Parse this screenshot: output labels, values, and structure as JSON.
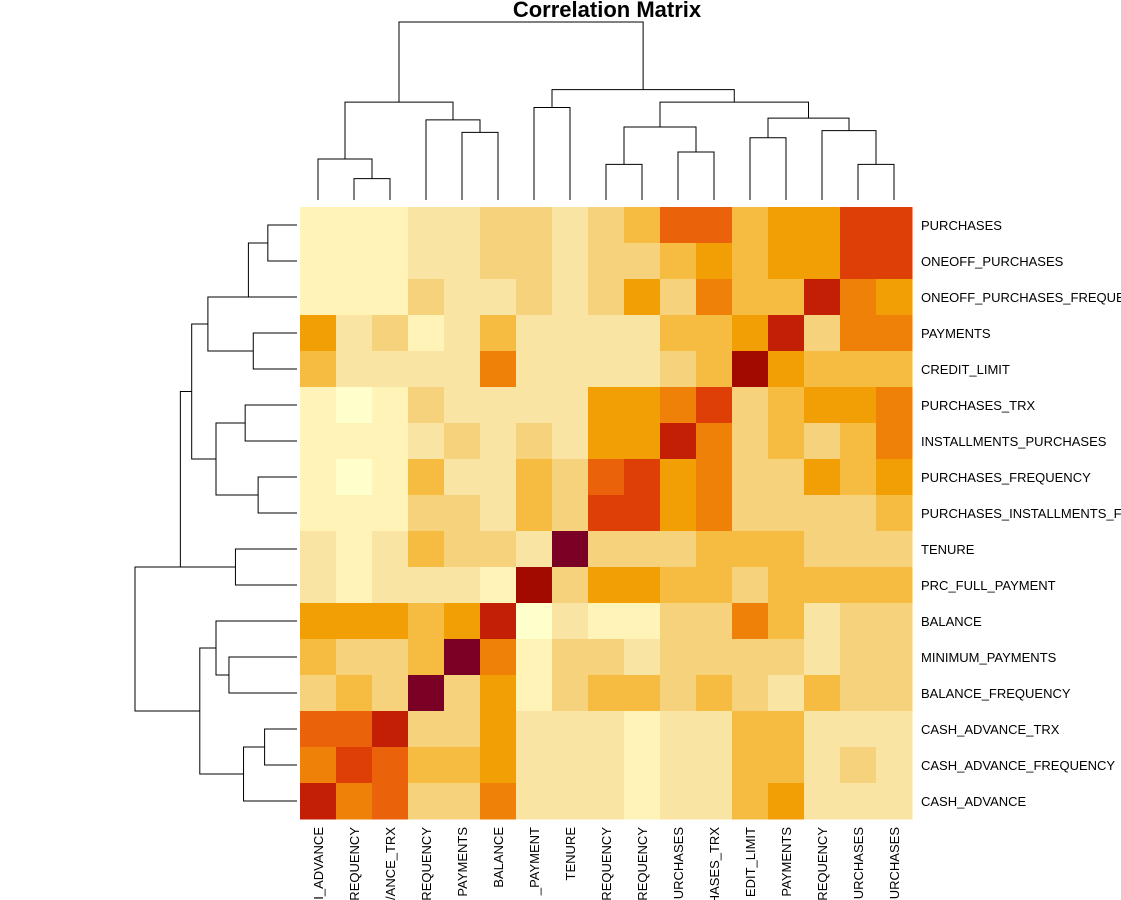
{
  "chart_data": {
    "type": "heatmap",
    "title": "Correlation Matrix",
    "row_labels": [
      "PURCHASES",
      "ONEOFF_PURCHASES",
      "ONEOFF_PURCHASES_FREQUE",
      "PAYMENTS",
      "CREDIT_LIMIT",
      "PURCHASES_TRX",
      "INSTALLMENTS_PURCHASES",
      "PURCHASES_FREQUENCY",
      "PURCHASES_INSTALLMENTS_F",
      "TENURE",
      "PRC_FULL_PAYMENT",
      "BALANCE",
      "MINIMUM_PAYMENTS",
      "BALANCE_FREQUENCY",
      "CASH_ADVANCE_TRX",
      "CASH_ADVANCE_FREQUENCY",
      "CASH_ADVANCE"
    ],
    "col_labels": [
      "I_ADVANCE",
      "REQUENCY",
      "/ANCE_TRX",
      "REQUENCY",
      "PAYMENTS",
      "BALANCE",
      "_PAYMENT",
      "TENURE",
      "REQUENCY",
      "REQUENCY",
      "URCHASES",
      "HASES_TRX",
      "EDIT_LIMIT",
      "PAYMENTS",
      "REQUENCY",
      "URCHASES",
      "URCHASES"
    ],
    "color_scale": {
      "name": "heat",
      "stops": [
        "#FFFFCC",
        "#FFF3B8",
        "#F9E4A3",
        "#F6D27D",
        "#F6BB41",
        "#F29F05",
        "#F08108",
        "#EA620A",
        "#DE3F06",
        "#C21F05",
        "#A20A00",
        "#7A0026"
      ]
    },
    "levels": [
      [
        1,
        1,
        1,
        2,
        2,
        3,
        3,
        2,
        3,
        4,
        7,
        7,
        4,
        5,
        5,
        8,
        8
      ],
      [
        1,
        1,
        1,
        2,
        2,
        3,
        3,
        2,
        3,
        3,
        4,
        5,
        4,
        5,
        5,
        8,
        8
      ],
      [
        1,
        1,
        1,
        3,
        2,
        2,
        3,
        2,
        3,
        5,
        3,
        6,
        4,
        4,
        9,
        6,
        5
      ],
      [
        5,
        2,
        3,
        1,
        2,
        4,
        2,
        2,
        2,
        2,
        4,
        4,
        5,
        9,
        3,
        6,
        6
      ],
      [
        4,
        2,
        2,
        2,
        2,
        6,
        2,
        2,
        2,
        2,
        3,
        4,
        10,
        5,
        4,
        4,
        4
      ],
      [
        1,
        0,
        1,
        3,
        2,
        2,
        2,
        2,
        5,
        5,
        6,
        8,
        3,
        4,
        5,
        5,
        6
      ],
      [
        1,
        1,
        1,
        2,
        3,
        2,
        3,
        2,
        5,
        5,
        9,
        6,
        3,
        4,
        3,
        4,
        6
      ],
      [
        1,
        0,
        1,
        4,
        2,
        2,
        4,
        3,
        7,
        8,
        5,
        6,
        3,
        3,
        5,
        4,
        5
      ],
      [
        1,
        1,
        1,
        3,
        3,
        2,
        4,
        3,
        8,
        8,
        5,
        6,
        3,
        3,
        3,
        3,
        4
      ],
      [
        2,
        1,
        2,
        4,
        3,
        3,
        2,
        11,
        3,
        3,
        3,
        4,
        4,
        4,
        3,
        3,
        3
      ],
      [
        2,
        1,
        2,
        2,
        2,
        1,
        10,
        3,
        5,
        5,
        4,
        4,
        3,
        4,
        4,
        4,
        4
      ],
      [
        5,
        5,
        5,
        4,
        5,
        9,
        0,
        2,
        1,
        1,
        3,
        3,
        6,
        4,
        2,
        3,
        3
      ],
      [
        4,
        3,
        3,
        4,
        11,
        6,
        1,
        3,
        3,
        2,
        3,
        3,
        3,
        3,
        2,
        3,
        3
      ],
      [
        3,
        4,
        3,
        11,
        3,
        5,
        1,
        3,
        4,
        4,
        3,
        4,
        3,
        2,
        4,
        3,
        3
      ],
      [
        7,
        7,
        9,
        3,
        3,
        5,
        2,
        2,
        2,
        1,
        2,
        2,
        4,
        4,
        2,
        2,
        2
      ],
      [
        6,
        8,
        7,
        4,
        4,
        5,
        2,
        2,
        2,
        1,
        2,
        2,
        4,
        4,
        2,
        3,
        2
      ],
      [
        9,
        6,
        7,
        3,
        3,
        6,
        2,
        2,
        2,
        1,
        2,
        2,
        4,
        5,
        2,
        2,
        2
      ]
    ],
    "row_dendrogram": [
      [
        0,
        1,
        0.18
      ],
      [
        2,
        0,
        0.3
      ],
      [
        3,
        4,
        0.27
      ],
      [
        5,
        6,
        0.32
      ],
      [
        7,
        8,
        0.24
      ],
      [
        9,
        10,
        0.38
      ],
      [
        12,
        13,
        0.42
      ],
      [
        11,
        12,
        0.5
      ],
      [
        14,
        15,
        0.2
      ],
      [
        16,
        14,
        0.33
      ],
      [
        2,
        3,
        0.55
      ],
      [
        5,
        7,
        0.5
      ],
      [
        2,
        5,
        0.65
      ],
      [
        11,
        14,
        0.6
      ],
      [
        9,
        2,
        0.72
      ],
      [
        11,
        9,
        1.0
      ]
    ],
    "col_dendrogram": [
      [
        1,
        2,
        0.12
      ],
      [
        0,
        1,
        0.23
      ],
      [
        4,
        5,
        0.38
      ],
      [
        3,
        4,
        0.45
      ],
      [
        0,
        3,
        0.55
      ],
      [
        8,
        9,
        0.2
      ],
      [
        10,
        11,
        0.27
      ],
      [
        8,
        10,
        0.41
      ],
      [
        6,
        7,
        0.52
      ],
      [
        15,
        16,
        0.2
      ],
      [
        14,
        15,
        0.39
      ],
      [
        12,
        13,
        0.35
      ],
      [
        12,
        14,
        0.46
      ],
      [
        8,
        12,
        0.55
      ],
      [
        6,
        8,
        0.62
      ],
      [
        0,
        6,
        1.0
      ]
    ]
  }
}
